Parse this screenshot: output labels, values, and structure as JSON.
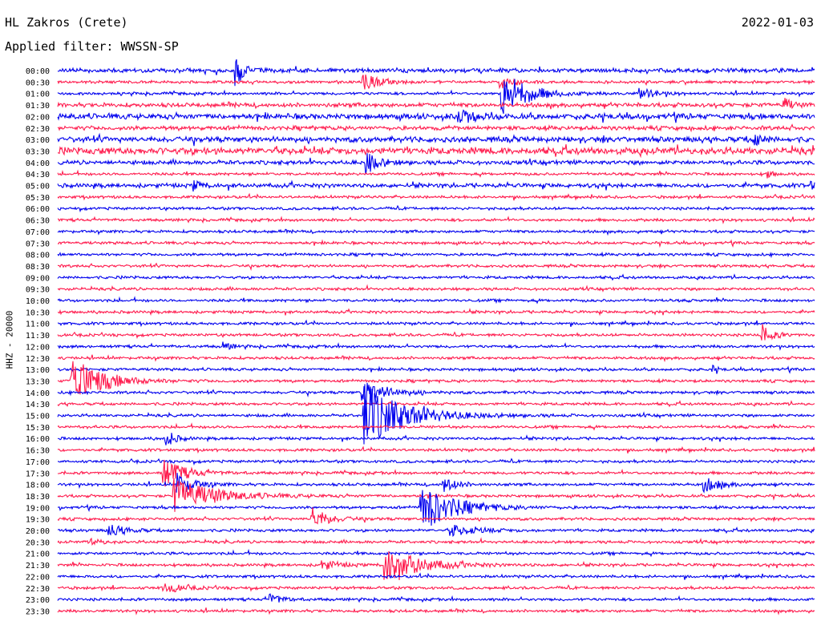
{
  "header": {
    "station": "HL Zakros (Crete)",
    "date": "2022-01-03",
    "filter_label": "Applied filter: WWSSN-SP"
  },
  "axis": {
    "ylabel": "HHZ - 20000"
  },
  "colors": {
    "trace_a": "#0000ee",
    "trace_b": "#ff1a4d"
  },
  "chart_data": {
    "type": "line",
    "description_hint": "helicorder",
    "ylabel": "HHZ - 20000",
    "row_labels": [
      "00:00",
      "00:30",
      "01:00",
      "01:30",
      "02:00",
      "02:30",
      "03:00",
      "03:30",
      "04:00",
      "04:30",
      "05:00",
      "05:30",
      "06:00",
      "06:30",
      "07:00",
      "07:30",
      "08:00",
      "08:30",
      "09:00",
      "09:30",
      "10:00",
      "10:30",
      "11:00",
      "11:30",
      "12:00",
      "12:30",
      "13:00",
      "13:30",
      "14:00",
      "14:30",
      "15:00",
      "15:30",
      "16:00",
      "16:30",
      "17:00",
      "17:30",
      "18:00",
      "18:30",
      "19:00",
      "19:30",
      "20:00",
      "20:30",
      "21:00",
      "21:30",
      "22:00",
      "22:30",
      "23:00",
      "23:30"
    ],
    "row_colors": [
      "trace_a",
      "trace_b"
    ],
    "noise_levels": [
      3,
      2,
      2,
      3,
      4,
      3,
      4,
      5,
      3,
      2,
      3,
      2,
      2,
      2,
      2,
      2,
      2,
      2,
      2,
      2,
      2,
      2,
      2,
      2,
      2,
      2,
      2,
      2,
      2,
      2,
      2,
      2,
      2,
      2,
      2,
      2,
      2,
      2,
      2,
      2,
      2,
      2,
      2,
      2,
      2,
      2,
      2,
      2
    ],
    "events": [
      {
        "row": 0,
        "t": 0.236,
        "amp": 18,
        "dur": 0.01
      },
      {
        "row": 1,
        "t": 0.404,
        "amp": 10,
        "dur": 0.02
      },
      {
        "row": 1,
        "t": 0.585,
        "amp": 8,
        "dur": 0.015
      },
      {
        "row": 2,
        "t": 0.587,
        "amp": 30,
        "dur": 0.03
      },
      {
        "row": 2,
        "t": 0.77,
        "amp": 6,
        "dur": 0.02
      },
      {
        "row": 3,
        "t": 0.96,
        "amp": 8,
        "dur": 0.01
      },
      {
        "row": 4,
        "t": 0.53,
        "amp": 8,
        "dur": 0.02
      },
      {
        "row": 6,
        "t": 0.92,
        "amp": 8,
        "dur": 0.01
      },
      {
        "row": 8,
        "t": 0.408,
        "amp": 14,
        "dur": 0.015
      },
      {
        "row": 9,
        "t": 0.938,
        "amp": 7,
        "dur": 0.005
      },
      {
        "row": 10,
        "t": 0.18,
        "amp": 6,
        "dur": 0.01
      },
      {
        "row": 10,
        "t": 0.993,
        "amp": 8,
        "dur": 0.005
      },
      {
        "row": 23,
        "t": 0.93,
        "amp": 14,
        "dur": 0.012
      },
      {
        "row": 24,
        "t": 0.22,
        "amp": 5,
        "dur": 0.01
      },
      {
        "row": 26,
        "t": 0.865,
        "amp": 5,
        "dur": 0.005
      },
      {
        "row": 27,
        "t": 0.018,
        "amp": 34,
        "dur": 0.035
      },
      {
        "row": 28,
        "t": 0.403,
        "amp": 16,
        "dur": 0.03
      },
      {
        "row": 30,
        "t": 0.405,
        "amp": 40,
        "dur": 0.05
      },
      {
        "row": 32,
        "t": 0.143,
        "amp": 12,
        "dur": 0.01
      },
      {
        "row": 35,
        "t": 0.14,
        "amp": 18,
        "dur": 0.025
      },
      {
        "row": 36,
        "t": 0.158,
        "amp": 14,
        "dur": 0.02
      },
      {
        "row": 36,
        "t": 0.854,
        "amp": 9,
        "dur": 0.02
      },
      {
        "row": 36,
        "t": 0.51,
        "amp": 10,
        "dur": 0.015
      },
      {
        "row": 37,
        "t": 0.154,
        "amp": 22,
        "dur": 0.05
      },
      {
        "row": 38,
        "t": 0.48,
        "amp": 30,
        "dur": 0.04
      },
      {
        "row": 39,
        "t": 0.336,
        "amp": 14,
        "dur": 0.02
      },
      {
        "row": 40,
        "t": 0.068,
        "amp": 8,
        "dur": 0.02
      },
      {
        "row": 40,
        "t": 0.52,
        "amp": 7,
        "dur": 0.03
      },
      {
        "row": 41,
        "t": 0.046,
        "amp": 6,
        "dur": 0.01
      },
      {
        "row": 43,
        "t": 0.433,
        "amp": 24,
        "dur": 0.04
      },
      {
        "row": 43,
        "t": 0.35,
        "amp": 6,
        "dur": 0.02
      },
      {
        "row": 45,
        "t": 0.14,
        "amp": 7,
        "dur": 0.02
      },
      {
        "row": 46,
        "t": 0.28,
        "amp": 7,
        "dur": 0.015
      }
    ]
  }
}
